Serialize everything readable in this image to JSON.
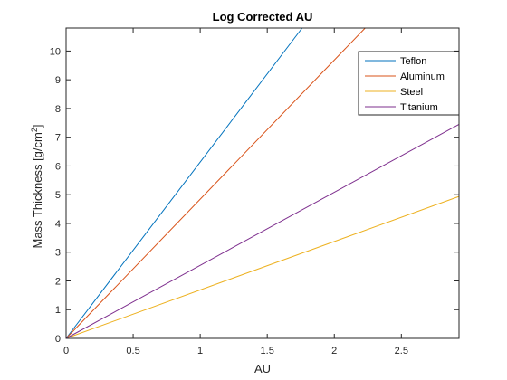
{
  "chart_data": {
    "type": "line",
    "title": "Log Corrected AU",
    "xlabel": "AU",
    "ylabel": "Mass Thickness [g/cm",
    "ylabel_sup": "2",
    "ylabel_end": "]",
    "xlim": [
      0,
      2.93
    ],
    "ylim": [
      0,
      10.8
    ],
    "xticks": [
      0,
      0.5,
      1,
      1.5,
      2,
      2.5
    ],
    "xtick_labels": [
      "0",
      "0.5",
      "1",
      "1.5",
      "2",
      "2.5"
    ],
    "yticks": [
      0,
      1,
      2,
      3,
      4,
      5,
      6,
      7,
      8,
      9,
      10
    ],
    "ytick_labels": [
      "0",
      "1",
      "2",
      "3",
      "4",
      "5",
      "6",
      "7",
      "8",
      "9",
      "10"
    ],
    "grid": false,
    "legend_position": "top-right",
    "series": [
      {
        "name": "Teflon",
        "color": "#0072BD",
        "x": [
          0,
          1.76
        ],
        "y": [
          0,
          10.8
        ]
      },
      {
        "name": "Aluminum",
        "color": "#D95319",
        "x": [
          0,
          2.23
        ],
        "y": [
          0,
          10.8
        ]
      },
      {
        "name": "Steel",
        "color": "#EDB120",
        "x": [
          0,
          2.93
        ],
        "y": [
          0,
          4.94
        ]
      },
      {
        "name": "Titanium",
        "color": "#7E2F8E",
        "x": [
          0,
          2.93
        ],
        "y": [
          0,
          7.45
        ]
      }
    ]
  }
}
